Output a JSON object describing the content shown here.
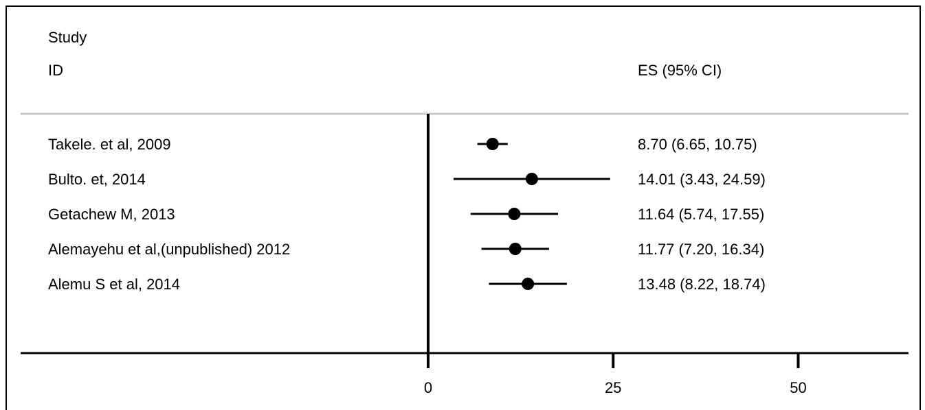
{
  "chart_data": {
    "type": "forest",
    "header": {
      "study_line1": "Study",
      "study_line2": "ID",
      "es_label": "ES (95% CI)"
    },
    "studies": [
      {
        "label": "Takele. et al, 2009",
        "es": 8.7,
        "lo": 6.65,
        "hi": 10.75,
        "text": "8.70 (6.65, 10.75)"
      },
      {
        "label": "Bulto. et, 2014",
        "es": 14.01,
        "lo": 3.43,
        "hi": 24.59,
        "text": "14.01 (3.43, 24.59)"
      },
      {
        "label": "Getachew M, 2013",
        "es": 11.64,
        "lo": 5.74,
        "hi": 17.55,
        "text": "11.64 (5.74, 17.55)"
      },
      {
        "label": "Alemayehu et al,(unpublished) 2012",
        "es": 11.77,
        "lo": 7.2,
        "hi": 16.34,
        "text": "11.77 (7.20, 16.34)"
      },
      {
        "label": "Alemu S et al, 2014",
        "es": 13.48,
        "lo": 8.22,
        "hi": 18.74,
        "text": "13.48 (8.22, 18.74)"
      }
    ],
    "xticks": [
      0,
      25,
      50
    ],
    "xtick_labels": [
      "0",
      "25",
      "50"
    ],
    "null_line": 0
  }
}
